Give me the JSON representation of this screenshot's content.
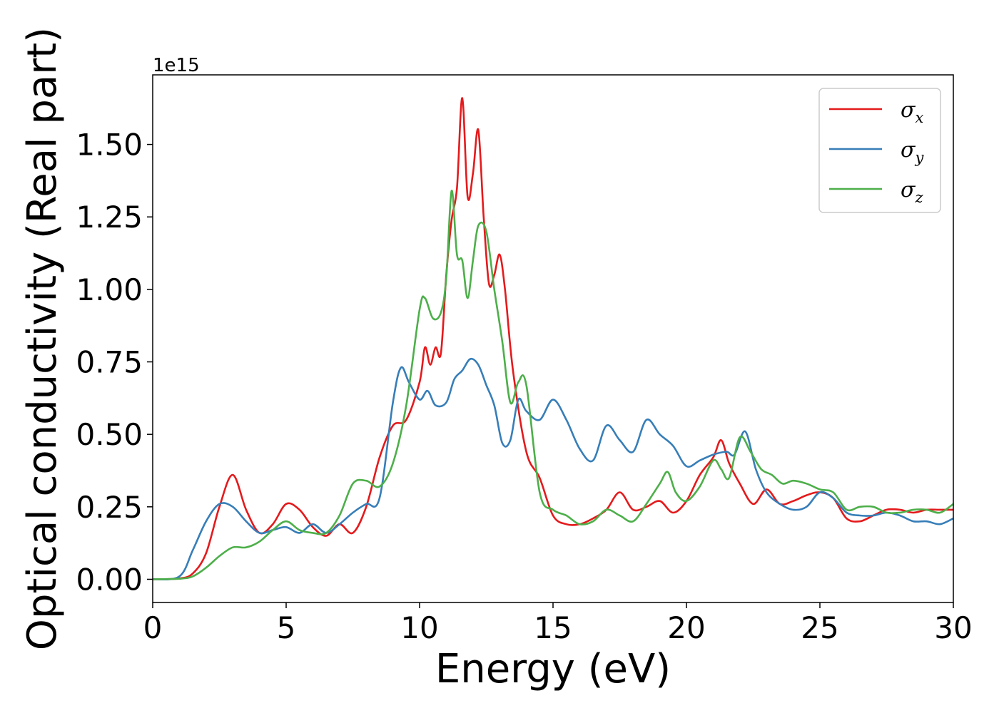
{
  "chart_data": {
    "type": "line",
    "xlabel": "Energy (eV)",
    "ylabel": "Optical conductivity (Real part)",
    "y_offset_label": "1e15",
    "xlim": [
      0,
      30
    ],
    "ylim": [
      -0.08,
      1.74
    ],
    "x_ticks": [
      0,
      5,
      10,
      15,
      20,
      25,
      30
    ],
    "x_tick_labels": [
      "0",
      "5",
      "10",
      "15",
      "20",
      "25",
      "30"
    ],
    "y_ticks": [
      0,
      0.25,
      0.5,
      0.75,
      1.0,
      1.25,
      1.5
    ],
    "y_tick_labels": [
      "0.00",
      "0.25",
      "0.50",
      "0.75",
      "1.00",
      "1.25",
      "1.50"
    ],
    "grid": false,
    "legend_position": "top-right",
    "series": [
      {
        "name": "σx",
        "legend_main": "σ",
        "legend_sub": "x",
        "color": "#e41a1c",
        "x": [
          0,
          1,
          1.5,
          2,
          2.5,
          3,
          3.5,
          4,
          4.5,
          5,
          5.5,
          6,
          6.5,
          7,
          7.5,
          8,
          8.5,
          9,
          9.5,
          10,
          10.2,
          10.4,
          10.6,
          10.8,
          11,
          11.2,
          11.4,
          11.6,
          11.8,
          12,
          12.2,
          12.4,
          12.6,
          12.8,
          13,
          13.2,
          13.5,
          14,
          14.5,
          15,
          15.5,
          16,
          16.5,
          17,
          17.5,
          18,
          18.5,
          19,
          19.5,
          20,
          20.5,
          21,
          21.3,
          21.6,
          22,
          22.5,
          23,
          23.5,
          24,
          24.5,
          25,
          25.5,
          26,
          26.5,
          27,
          27.5,
          28,
          28.5,
          29,
          29.5,
          30
        ],
        "y": [
          0,
          0.003,
          0.02,
          0.09,
          0.25,
          0.36,
          0.24,
          0.16,
          0.19,
          0.26,
          0.24,
          0.18,
          0.15,
          0.19,
          0.16,
          0.25,
          0.42,
          0.53,
          0.55,
          0.68,
          0.8,
          0.74,
          0.8,
          0.78,
          1.05,
          1.24,
          1.35,
          1.66,
          1.32,
          1.4,
          1.55,
          1.25,
          1.02,
          1.05,
          1.12,
          1.0,
          0.72,
          0.44,
          0.35,
          0.22,
          0.19,
          0.19,
          0.21,
          0.24,
          0.3,
          0.24,
          0.25,
          0.27,
          0.23,
          0.27,
          0.36,
          0.42,
          0.48,
          0.4,
          0.33,
          0.26,
          0.31,
          0.26,
          0.27,
          0.29,
          0.3,
          0.28,
          0.21,
          0.2,
          0.22,
          0.24,
          0.24,
          0.23,
          0.24,
          0.24,
          0.24
        ]
      },
      {
        "name": "σy",
        "legend_main": "σ",
        "legend_sub": "y",
        "color": "#377eb8",
        "x": [
          0,
          1,
          1.5,
          2,
          2.5,
          3,
          3.5,
          4,
          4.5,
          5,
          5.5,
          6,
          6.5,
          7,
          7.5,
          8,
          8.5,
          9,
          9.3,
          9.6,
          10,
          10.3,
          10.6,
          11,
          11.3,
          11.6,
          11.9,
          12.2,
          12.5,
          12.8,
          13.1,
          13.4,
          13.7,
          14,
          14.5,
          15,
          15.5,
          16,
          16.5,
          17,
          17.5,
          18,
          18.5,
          19,
          19.5,
          20,
          20.5,
          21,
          21.5,
          21.8,
          22.2,
          22.6,
          23,
          23.5,
          24,
          24.5,
          25,
          25.5,
          26,
          26.5,
          27,
          27.5,
          28,
          28.5,
          29,
          29.5,
          30
        ],
        "y": [
          0,
          0.01,
          0.1,
          0.2,
          0.26,
          0.25,
          0.2,
          0.16,
          0.17,
          0.18,
          0.16,
          0.19,
          0.16,
          0.19,
          0.23,
          0.26,
          0.28,
          0.61,
          0.73,
          0.68,
          0.62,
          0.65,
          0.6,
          0.61,
          0.69,
          0.72,
          0.76,
          0.74,
          0.67,
          0.6,
          0.47,
          0.48,
          0.62,
          0.58,
          0.55,
          0.62,
          0.55,
          0.45,
          0.41,
          0.53,
          0.48,
          0.44,
          0.55,
          0.5,
          0.46,
          0.39,
          0.41,
          0.43,
          0.44,
          0.43,
          0.51,
          0.38,
          0.3,
          0.26,
          0.24,
          0.25,
          0.3,
          0.28,
          0.23,
          0.22,
          0.22,
          0.23,
          0.22,
          0.2,
          0.2,
          0.19,
          0.21
        ]
      },
      {
        "name": "σz",
        "legend_main": "σ",
        "legend_sub": "z",
        "color": "#4daf4a",
        "x": [
          0,
          1,
          1.5,
          2,
          2.5,
          3,
          3.5,
          4,
          4.5,
          5,
          5.5,
          6,
          6.5,
          7,
          7.5,
          8,
          8.5,
          9,
          9.5,
          10,
          10.2,
          10.5,
          10.8,
          11,
          11.2,
          11.4,
          11.6,
          11.8,
          12,
          12.2,
          12.5,
          12.8,
          13.1,
          13.4,
          13.7,
          14,
          14.5,
          15,
          15.5,
          16,
          16.5,
          17,
          17.5,
          18,
          18.5,
          19,
          19.3,
          19.6,
          20,
          20.5,
          21,
          21.3,
          21.6,
          22,
          22.4,
          22.8,
          23.2,
          23.6,
          24,
          24.5,
          25,
          25.5,
          26,
          26.5,
          27,
          27.5,
          28,
          28.5,
          29,
          29.5,
          30
        ],
        "y": [
          0,
          0.002,
          0.01,
          0.04,
          0.08,
          0.11,
          0.11,
          0.13,
          0.17,
          0.2,
          0.17,
          0.16,
          0.16,
          0.22,
          0.33,
          0.34,
          0.32,
          0.4,
          0.6,
          0.93,
          0.97,
          0.9,
          0.92,
          1.04,
          1.34,
          1.12,
          1.1,
          0.97,
          1.1,
          1.22,
          1.2,
          1.0,
          0.82,
          0.61,
          0.68,
          0.67,
          0.3,
          0.24,
          0.22,
          0.19,
          0.2,
          0.24,
          0.22,
          0.2,
          0.26,
          0.33,
          0.37,
          0.3,
          0.27,
          0.32,
          0.41,
          0.38,
          0.35,
          0.49,
          0.44,
          0.38,
          0.36,
          0.33,
          0.34,
          0.33,
          0.31,
          0.3,
          0.24,
          0.25,
          0.25,
          0.23,
          0.23,
          0.24,
          0.24,
          0.23,
          0.26
        ]
      }
    ]
  }
}
